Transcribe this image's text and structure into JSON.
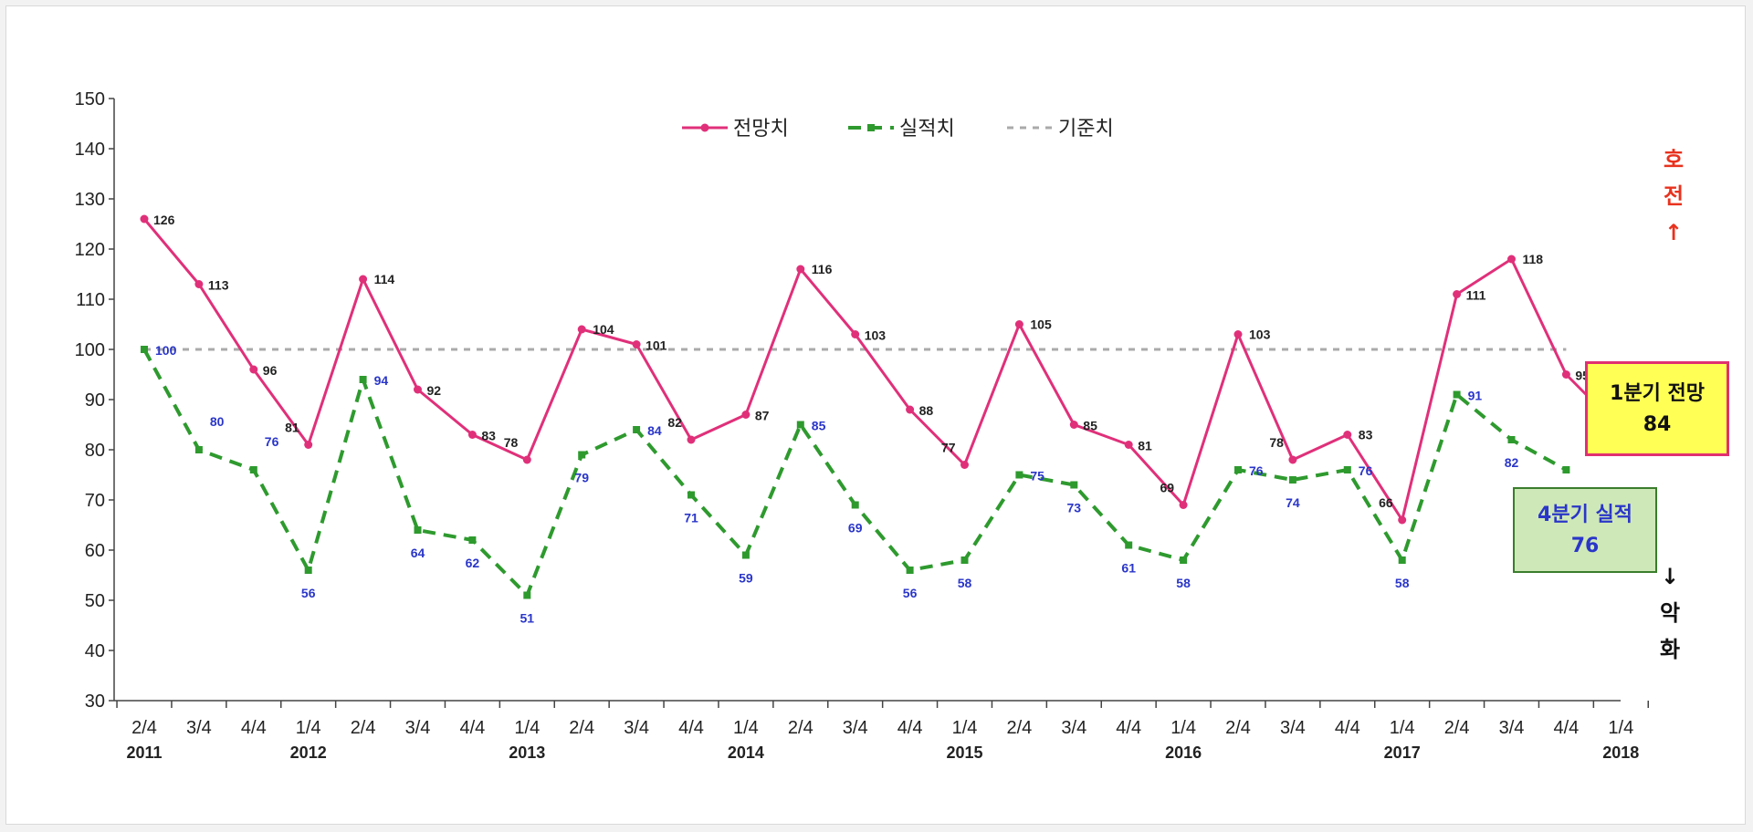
{
  "chart_data": {
    "type": "line",
    "categories": [
      {
        "q": "2/4",
        "y": "2011"
      },
      {
        "q": "3/4",
        "y": ""
      },
      {
        "q": "4/4",
        "y": ""
      },
      {
        "q": "1/4",
        "y": "2012"
      },
      {
        "q": "2/4",
        "y": ""
      },
      {
        "q": "3/4",
        "y": ""
      },
      {
        "q": "4/4",
        "y": ""
      },
      {
        "q": "1/4",
        "y": "2013"
      },
      {
        "q": "2/4",
        "y": ""
      },
      {
        "q": "3/4",
        "y": ""
      },
      {
        "q": "4/4",
        "y": ""
      },
      {
        "q": "1/4",
        "y": "2014"
      },
      {
        "q": "2/4",
        "y": ""
      },
      {
        "q": "3/4",
        "y": ""
      },
      {
        "q": "4/4",
        "y": ""
      },
      {
        "q": "1/4",
        "y": "2015"
      },
      {
        "q": "2/4",
        "y": ""
      },
      {
        "q": "3/4",
        "y": ""
      },
      {
        "q": "4/4",
        "y": ""
      },
      {
        "q": "1/4",
        "y": "2016"
      },
      {
        "q": "2/4",
        "y": ""
      },
      {
        "q": "3/4",
        "y": ""
      },
      {
        "q": "4/4",
        "y": ""
      },
      {
        "q": "1/4",
        "y": "2017"
      },
      {
        "q": "2/4",
        "y": ""
      },
      {
        "q": "3/4",
        "y": ""
      },
      {
        "q": "4/4",
        "y": ""
      },
      {
        "q": "1/4",
        "y": "2018"
      }
    ],
    "series": [
      {
        "name": "전망치",
        "color": "#e0307a",
        "style": "solid",
        "values": [
          126,
          113,
          96,
          81,
          114,
          92,
          83,
          78,
          104,
          101,
          82,
          87,
          116,
          103,
          88,
          77,
          105,
          85,
          81,
          69,
          103,
          78,
          83,
          66,
          111,
          118,
          95,
          84
        ]
      },
      {
        "name": "실적치",
        "color": "#2e9a2e",
        "style": "dashed",
        "values": [
          100,
          80,
          76,
          56,
          94,
          64,
          62,
          51,
          79,
          84,
          71,
          59,
          85,
          69,
          56,
          58,
          75,
          73,
          61,
          58,
          76,
          74,
          76,
          58,
          91,
          82,
          76,
          null
        ]
      },
      {
        "name": "기준치",
        "color": "#aaaaaa",
        "style": "dotted",
        "values": [
          100,
          100,
          100,
          100,
          100,
          100,
          100,
          100,
          100,
          100,
          100,
          100,
          100,
          100,
          100,
          100,
          100,
          100,
          100,
          100,
          100,
          100,
          100,
          100,
          100,
          100,
          100,
          null
        ]
      }
    ],
    "forecast_labels": [
      "126",
      "113",
      "96",
      "81",
      "114",
      "92",
      "83",
      "78",
      "104",
      "101",
      "82",
      "87",
      "116",
      "103",
      "88",
      "77",
      "105",
      "85",
      "81",
      "69",
      "103",
      "78",
      "83",
      "66",
      "111",
      "118",
      "95",
      ""
    ],
    "actual_labels": [
      "100",
      "80",
      "76",
      "56",
      "94",
      "64",
      "62",
      "51",
      "79",
      "84",
      "71",
      "59",
      "85",
      "69",
      "56",
      "58",
      "75",
      "73",
      "61",
      "58",
      "76",
      "74",
      "76",
      "58",
      "91",
      "82",
      "",
      ""
    ],
    "ylim": [
      30,
      150
    ],
    "yticks": [
      30,
      40,
      50,
      60,
      70,
      80,
      90,
      100,
      110,
      120,
      130,
      140,
      150
    ],
    "grid": false,
    "legend_position": "top-center"
  },
  "callouts": {
    "forecast": {
      "line1": "1분기 전망",
      "line2": "84"
    },
    "actual": {
      "line1": "4분기 실적",
      "line2": "76"
    }
  },
  "side_labels": {
    "up_1": "호",
    "up_2": "전",
    "up_arrow": "↑",
    "down_arrow": "↓",
    "down_1": "악",
    "down_2": "화"
  }
}
